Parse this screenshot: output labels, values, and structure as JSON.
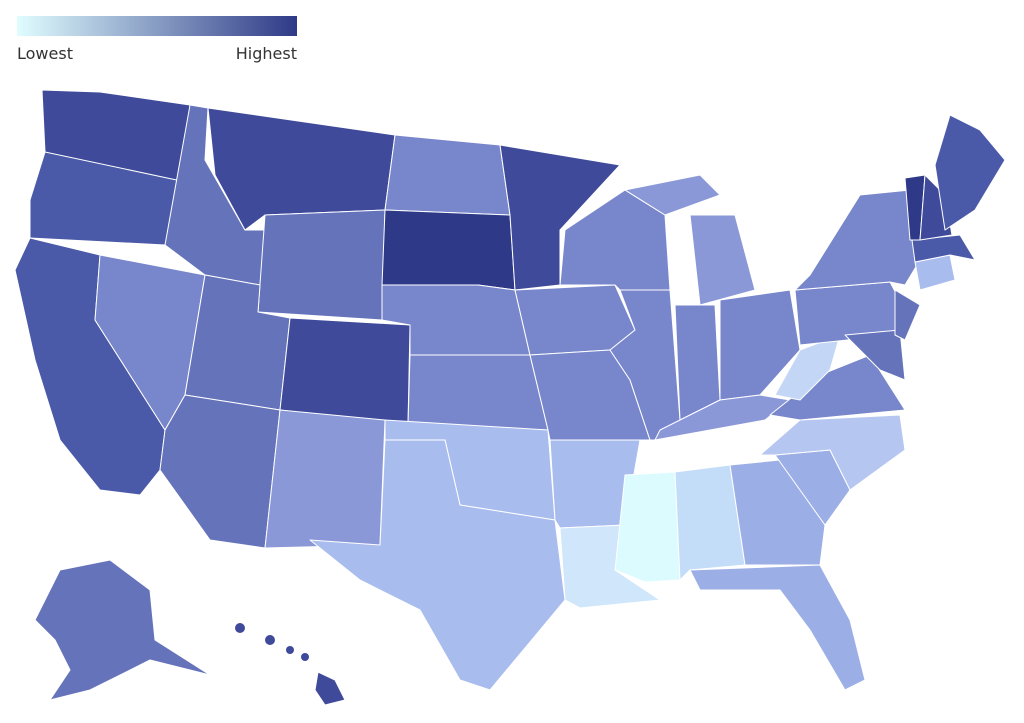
{
  "legend": {
    "low_label": "Lowest",
    "high_label": "Highest",
    "low_color": "#e0fdff",
    "high_color": "#2e3a87"
  },
  "region_colors": [
    "#3f4b9a",
    "#4b5aa8",
    "#4b5aa8",
    "#7886cc",
    "#6573bb",
    "#3f4b9a",
    "#6573bb",
    "#6573bb",
    "#3f4b9a",
    "#6573bb",
    "#8a98d8",
    "#7886cc",
    "#2e3a87",
    "#7886cc",
    "#7886cc",
    "#a9bcee",
    "#a9bcee",
    "#3f4b9a",
    "#7886cc",
    "#7886cc",
    "#a9bcee",
    "#d0e6fb",
    "#7886cc",
    "#7886cc",
    "#8a98d8",
    "#8a98d8",
    "#7886cc",
    "#7886cc",
    "#8a98d8",
    "#dcfbff",
    "#c3dcf8",
    "#9caee6",
    "#9caee6",
    "#9caee6",
    "#b5c6f0",
    "#7886cc",
    "#c3d6f6",
    "#7886cc",
    "#7886cc",
    "#6573bb",
    "#6573bb",
    "#a9bcee",
    "#4b5aa8",
    "#2e3a87",
    "#3f4b9a",
    "#4b5aa8",
    "#6573bb",
    "#3f4b9a"
  ]
}
